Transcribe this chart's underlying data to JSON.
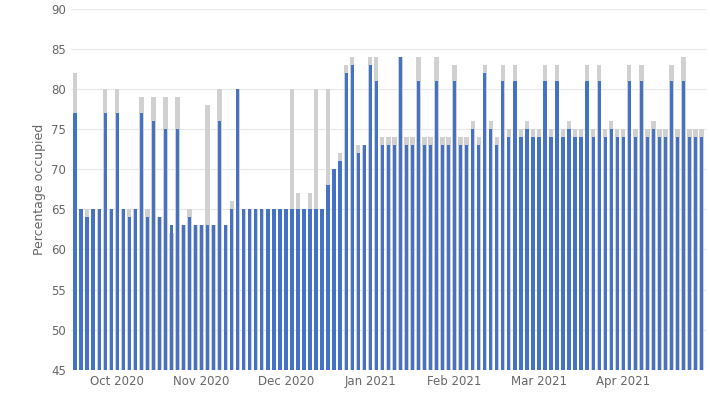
{
  "ylabel": "Percentage occupied",
  "ylim": [
    45,
    90
  ],
  "yticks": [
    45,
    50,
    55,
    60,
    65,
    70,
    75,
    80,
    85,
    90
  ],
  "background_color": "#ffffff",
  "bar_color_blue": "#4472c4",
  "bar_color_gray": "#d0d0d0",
  "blue_values": [
    77,
    65,
    64,
    65,
    65,
    77,
    65,
    77,
    65,
    64,
    65,
    77,
    64,
    76,
    64,
    75,
    63,
    75,
    63,
    64,
    63,
    63,
    63,
    63,
    76,
    63,
    65,
    80,
    65,
    65,
    65,
    65,
    65,
    65,
    65,
    65,
    65,
    65,
    65,
    65,
    65,
    65,
    68,
    70,
    71,
    82,
    83,
    72,
    73,
    83,
    81,
    73,
    73,
    73,
    84,
    73,
    73,
    81,
    73,
    73,
    81,
    73,
    73,
    81,
    73,
    73,
    75,
    73,
    82,
    75,
    73,
    81,
    74,
    81,
    74,
    75,
    74,
    74,
    81,
    74,
    81,
    74,
    75,
    74,
    74,
    81,
    74,
    81,
    74,
    75,
    74,
    74,
    81,
    74,
    81,
    74,
    75,
    74,
    74,
    81,
    74,
    81,
    74,
    74,
    74
  ],
  "gray_values": [
    82,
    65,
    65,
    65,
    65,
    80,
    65,
    80,
    65,
    65,
    65,
    79,
    65,
    79,
    64,
    79,
    62,
    79,
    63,
    65,
    63,
    63,
    78,
    63,
    80,
    63,
    66,
    80,
    65,
    65,
    65,
    65,
    65,
    65,
    65,
    65,
    80,
    67,
    65,
    67,
    80,
    65,
    80,
    70,
    72,
    83,
    84,
    73,
    73,
    84,
    84,
    74,
    74,
    74,
    84,
    74,
    74,
    84,
    74,
    74,
    84,
    74,
    74,
    83,
    74,
    74,
    76,
    74,
    83,
    76,
    74,
    83,
    75,
    83,
    75,
    76,
    75,
    75,
    83,
    75,
    83,
    75,
    76,
    75,
    75,
    83,
    75,
    83,
    75,
    76,
    75,
    75,
    83,
    75,
    83,
    75,
    76,
    75,
    75,
    83,
    75,
    84,
    75,
    75,
    75
  ],
  "month_labels": [
    "Oct 2020",
    "Nov 2020",
    "Dec 2020",
    "Jan 2021",
    "Feb 2021",
    "Mar 2021",
    "Apr 2021"
  ],
  "month_tick_positions": [
    7,
    21,
    35,
    49,
    63,
    77,
    91
  ]
}
